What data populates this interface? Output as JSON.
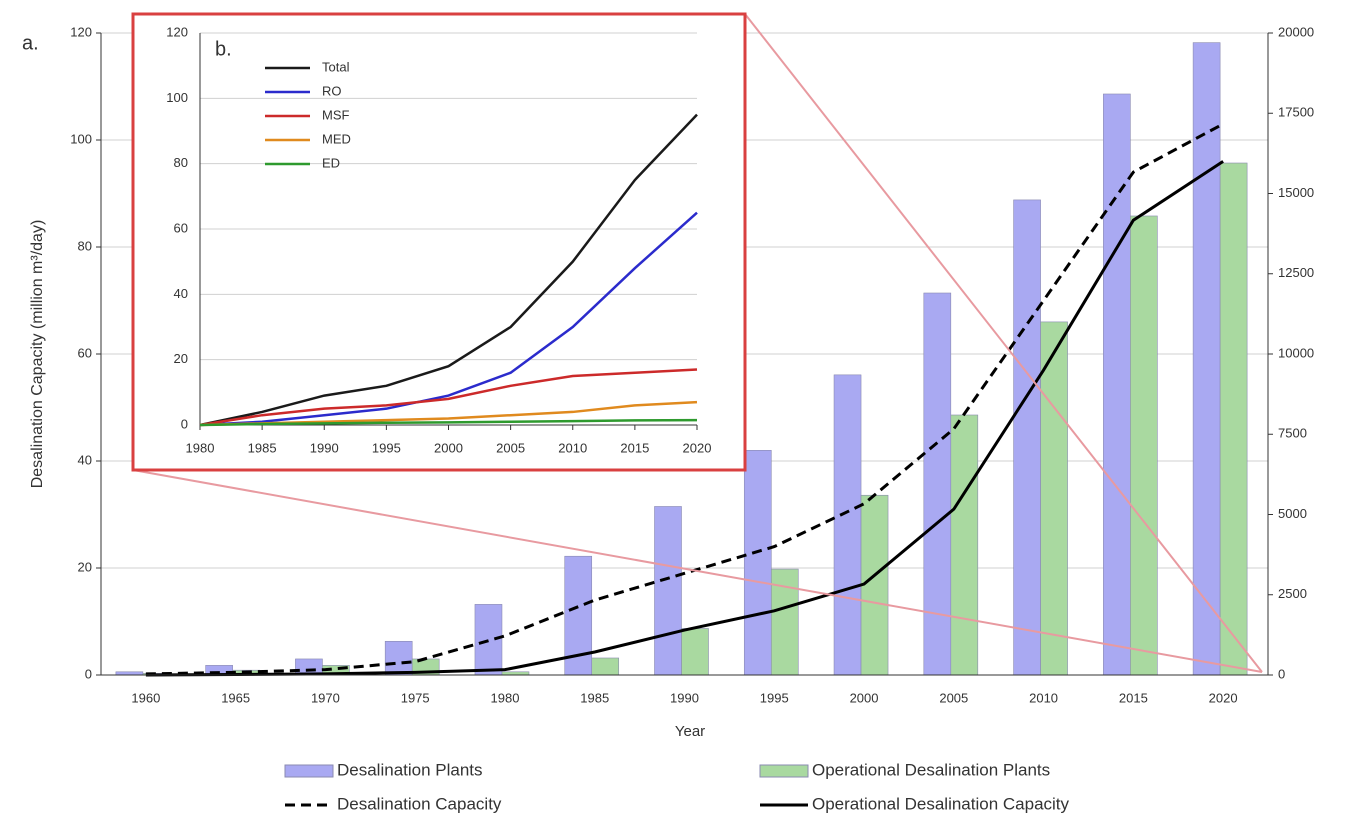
{
  "chart_data": [
    {
      "type": "bar",
      "panel_label": "a.",
      "x_label": "Year",
      "y_label": "Desalination Capacity (million m³/day)",
      "categories": [
        "1960",
        "1965",
        "1970",
        "1975",
        "1980",
        "1985",
        "1990",
        "1995",
        "2000",
        "2005",
        "2010",
        "2015",
        "2020"
      ],
      "ylim": [
        0,
        120
      ],
      "yticks": [
        0,
        20,
        40,
        60,
        80,
        100,
        120
      ],
      "y2lim": [
        0,
        20000
      ],
      "y2ticks": [
        0,
        2500,
        5000,
        7500,
        10000,
        12500,
        15000,
        17500,
        20000
      ],
      "grid": true,
      "series": [
        {
          "name": "Desalination Plants",
          "type": "bar",
          "axis": "y2",
          "color": "#a9a9f2",
          "values": [
            100,
            300,
            500,
            1050,
            2200,
            3700,
            5250,
            7000,
            9350,
            11900,
            14800,
            18100,
            19700
          ]
        },
        {
          "name": "Operational Desalination Plants",
          "type": "bar",
          "axis": "y2",
          "color": "#a9d9a0",
          "values": [
            50,
            150,
            300,
            500,
            100,
            530,
            1450,
            3300,
            5600,
            8100,
            11000,
            14300,
            15950
          ]
        },
        {
          "name": "Desalination Capacity",
          "type": "line",
          "dashed": true,
          "color": "#000000",
          "values": [
            0.2,
            0.5,
            1,
            2.5,
            7.3,
            14,
            19,
            24,
            32,
            46,
            70,
            94,
            103
          ]
        },
        {
          "name": "Operational Desalination Capacity",
          "type": "line",
          "dashed": false,
          "color": "#000000",
          "values": [
            0,
            0.1,
            0.2,
            0.5,
            1,
            4.3,
            8.4,
            12,
            17,
            31,
            57,
            85,
            96
          ]
        }
      ]
    },
    {
      "type": "line",
      "panel_label": "b.",
      "x": [
        1980,
        1985,
        1990,
        1995,
        2000,
        2005,
        2010,
        2015,
        2020
      ],
      "xlim": [
        1980,
        2020
      ],
      "xticks": [
        1980,
        1985,
        1990,
        1995,
        2000,
        2005,
        2010,
        2015,
        2020
      ],
      "ylim": [
        0,
        120
      ],
      "yticks": [
        0,
        20,
        40,
        60,
        80,
        100,
        120
      ],
      "grid": true,
      "series": [
        {
          "name": "Total",
          "color": "#1a1a1a",
          "values": [
            0,
            4,
            9,
            12,
            18,
            30,
            50,
            75,
            95
          ]
        },
        {
          "name": "RO",
          "color": "#2b2bcc",
          "values": [
            0,
            1,
            3,
            5,
            9,
            16,
            30,
            48,
            65
          ]
        },
        {
          "name": "MSF",
          "color": "#cc2a2a",
          "values": [
            0,
            3,
            5,
            6,
            8,
            12,
            15,
            16,
            17
          ]
        },
        {
          "name": "MED",
          "color": "#e08a1e",
          "values": [
            0,
            0.5,
            1,
            1.5,
            2,
            3,
            4,
            6,
            7
          ]
        },
        {
          "name": "ED",
          "color": "#2e9a2e",
          "values": [
            0,
            0.3,
            0.5,
            0.7,
            0.8,
            1,
            1.2,
            1.4,
            1.5
          ]
        }
      ]
    }
  ]
}
